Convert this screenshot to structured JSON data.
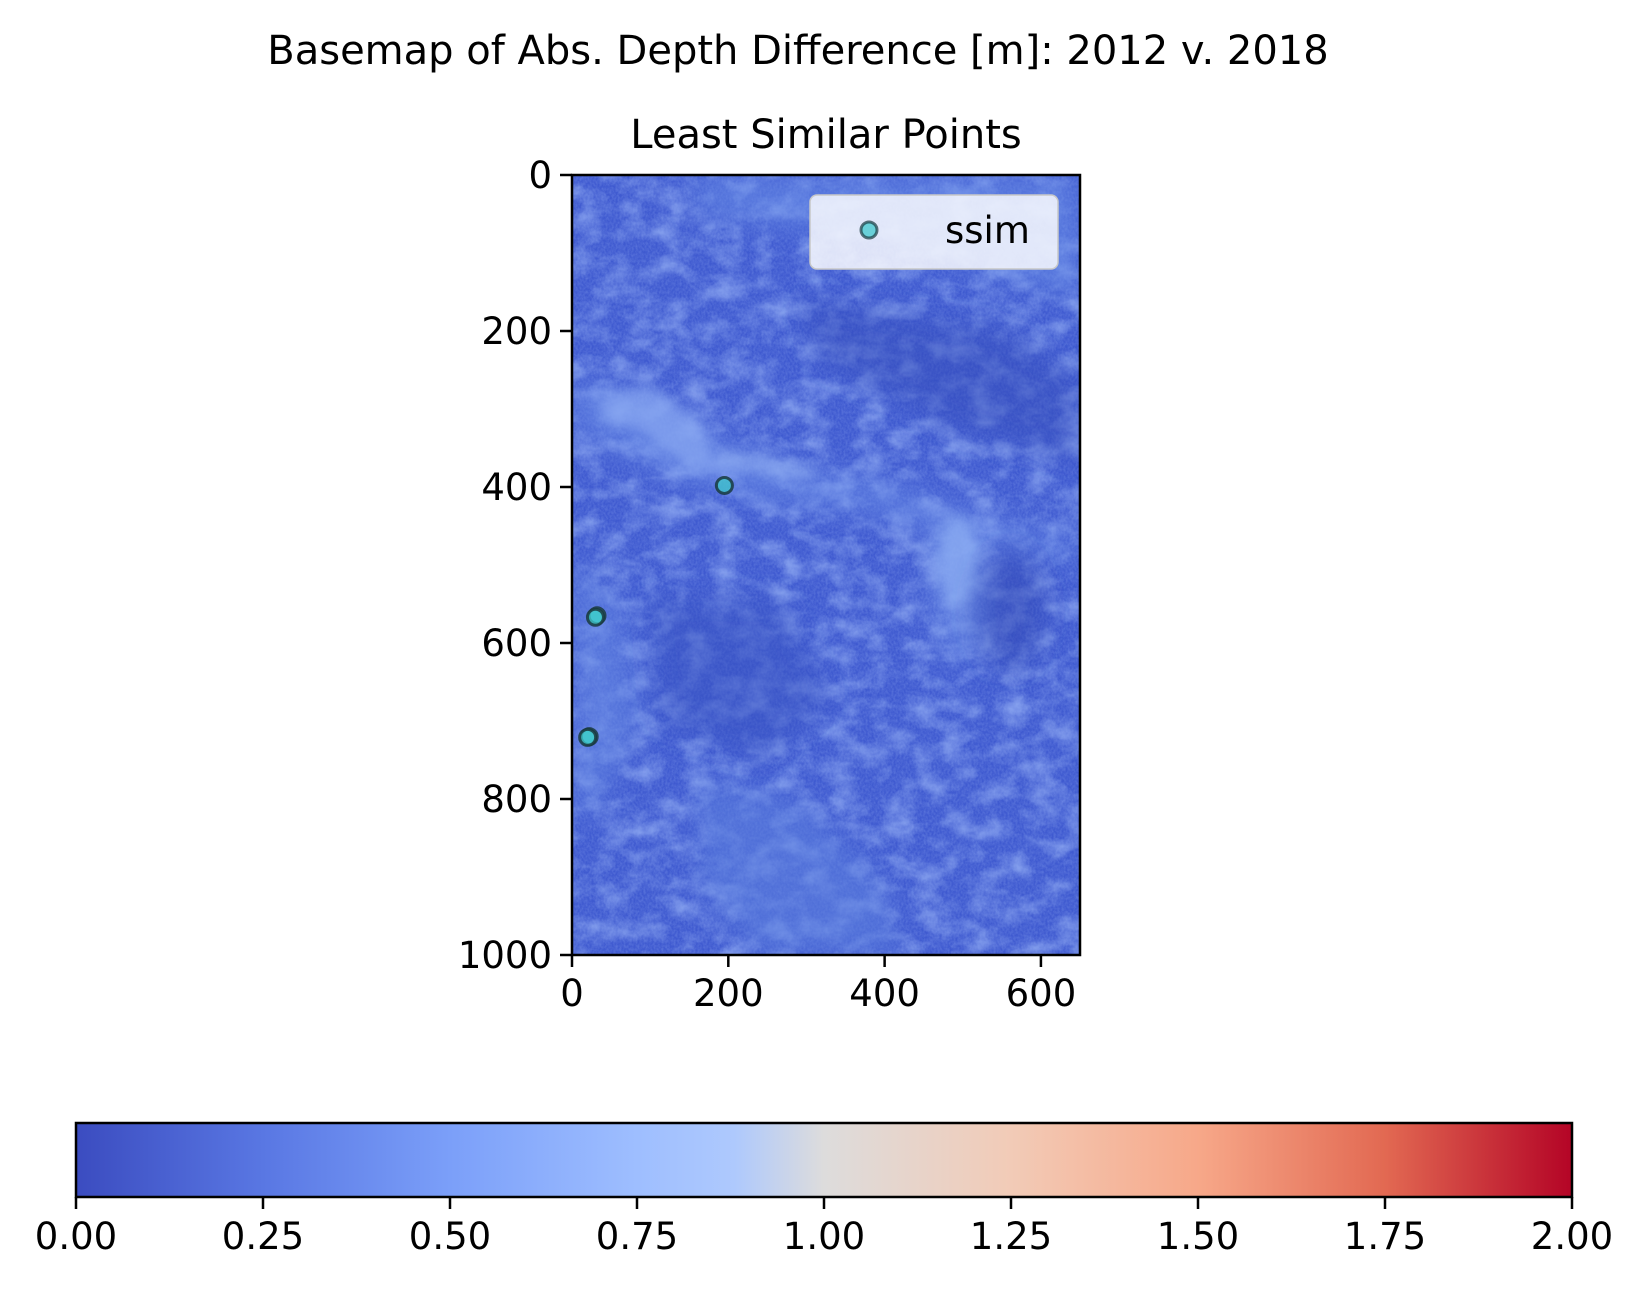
{
  "figure": {
    "suptitle": "Basemap of Abs. Depth Difference [m]: 2012 v. 2018"
  },
  "chart_data": [
    {
      "type": "scatter",
      "title": "Least Similar Points",
      "xlabel": "",
      "ylabel": "",
      "xlim": [
        0,
        650
      ],
      "ylim": [
        1000,
        0
      ],
      "y_inverted": true,
      "x_ticks": [
        0,
        200,
        400,
        600
      ],
      "y_ticks": [
        0,
        200,
        400,
        600,
        800,
        1000
      ],
      "background": "heatmap image of absolute depth difference, coolwarm colormap",
      "legend": {
        "position": "top-right",
        "entries": [
          "ssim"
        ]
      },
      "series": [
        {
          "name": "ssim",
          "color": "#40c8cc",
          "edge_color": "#1a3a40",
          "points": [
            {
              "x": 195,
              "y": 398
            },
            {
              "x": 32,
              "y": 565
            },
            {
              "x": 30,
              "y": 567
            },
            {
              "x": 22,
              "y": 720
            },
            {
              "x": 20,
              "y": 721
            }
          ]
        }
      ]
    },
    {
      "type": "colorbar",
      "colormap": "coolwarm",
      "range": [
        0.0,
        2.0
      ],
      "ticks": [
        "0.00",
        "0.25",
        "0.50",
        "0.75",
        "1.00",
        "1.25",
        "1.50",
        "1.75",
        "2.00"
      ],
      "colors": {
        "low": "#3b4cc0",
        "mid": "#dddddd",
        "high": "#b40426"
      }
    }
  ]
}
